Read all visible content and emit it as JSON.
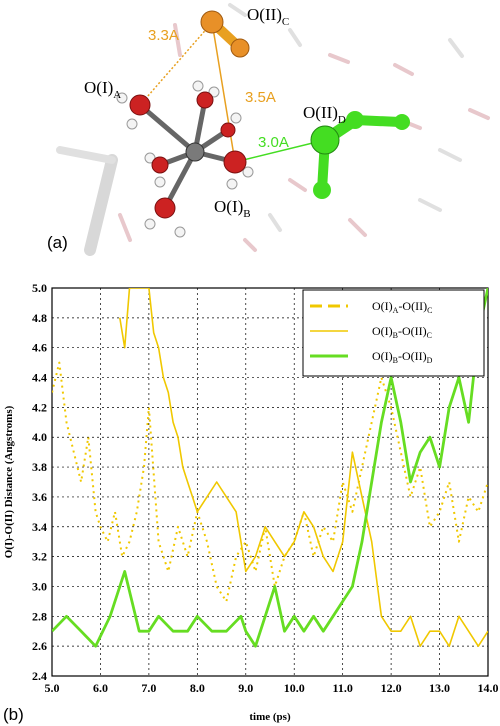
{
  "panel_a": {
    "label": "(a)",
    "atom_labels": {
      "o1a": {
        "main": "O(I)",
        "sub": "A"
      },
      "o1b": {
        "main": "O(I)",
        "sub": "B"
      },
      "o2c": {
        "main": "O(II)",
        "sub": "C"
      },
      "o2d": {
        "main": "O(II)",
        "sub": "D"
      }
    },
    "distances": [
      "3.3A",
      "3.5A",
      "3.0A"
    ],
    "colors": {
      "orange": "#e8a020",
      "green": "#44dd22",
      "red": "#cc2222",
      "metal": "#7a7a7a"
    }
  },
  "panel_b": {
    "label": "(b)"
  },
  "chart_data": {
    "type": "line",
    "xlabel": "time (ps)",
    "ylabel": "O(I)-O(II) Distance (Angstroms)",
    "xlim": [
      5.0,
      14.0
    ],
    "ylim": [
      2.4,
      5.0
    ],
    "xticks": [
      "5.0",
      "6.0",
      "7.0",
      "8.0",
      "9.0",
      "10.0",
      "11.0",
      "12.0",
      "13.0",
      "14.0"
    ],
    "yticks": [
      "2.4",
      "2.6",
      "2.8",
      "3.0",
      "3.2",
      "3.4",
      "3.6",
      "3.8",
      "4.0",
      "4.2",
      "4.4",
      "4.6",
      "4.8",
      "5.0"
    ],
    "grid": true,
    "legend_position": "top-right",
    "series": [
      {
        "name": "O(I)A-O(II)C",
        "name_main_1": "O(I)",
        "name_sub_1": "A",
        "name_main_2": "-O(II)",
        "name_sub_2": "C",
        "color": "#f0c800",
        "style": "dotted",
        "x": [
          5.0,
          5.15,
          5.3,
          5.45,
          5.6,
          5.75,
          5.9,
          6.0,
          6.15,
          6.3,
          6.45,
          6.6,
          6.75,
          6.9,
          7.0,
          7.2,
          7.4,
          7.6,
          7.8,
          8.0,
          8.2,
          8.4,
          8.6,
          8.8,
          9.0,
          9.2,
          9.4,
          9.6,
          9.8,
          10.0,
          10.2,
          10.4,
          10.6,
          10.8,
          11.0,
          11.2,
          11.4,
          11.6,
          11.8,
          12.0,
          12.2,
          12.4,
          12.6,
          12.8,
          13.0,
          13.2,
          13.4,
          13.6,
          13.8,
          14.0
        ],
        "y": [
          4.3,
          4.5,
          4.1,
          3.9,
          3.7,
          4.0,
          3.5,
          3.4,
          3.3,
          3.5,
          3.2,
          3.3,
          3.5,
          3.8,
          4.2,
          3.3,
          3.1,
          3.4,
          3.2,
          3.5,
          3.3,
          3.0,
          2.9,
          3.2,
          3.3,
          3.1,
          3.4,
          3.0,
          3.2,
          3.3,
          3.5,
          3.2,
          3.4,
          3.3,
          3.7,
          3.5,
          3.8,
          4.1,
          4.4,
          4.2,
          3.9,
          3.6,
          3.8,
          3.4,
          3.5,
          3.7,
          3.3,
          3.6,
          3.5,
          3.7
        ]
      },
      {
        "name": "O(I)B-O(II)C",
        "name_main_1": "O(I)",
        "name_sub_1": "B",
        "name_main_2": "-O(II)",
        "name_sub_2": "C",
        "color": "#f0c800",
        "style": "solid",
        "x": [
          6.4,
          6.5,
          6.6,
          7.0,
          7.1,
          7.2,
          7.3,
          7.4,
          7.5,
          7.6,
          7.7,
          7.8,
          7.9,
          8.0,
          8.2,
          8.4,
          8.6,
          8.8,
          9.0,
          9.2,
          9.4,
          9.6,
          9.8,
          10.0,
          10.2,
          10.4,
          10.6,
          10.8,
          11.0,
          11.2,
          11.4,
          11.6,
          11.8,
          12.0,
          12.2,
          12.4,
          12.6,
          12.8,
          13.0,
          13.2,
          13.4,
          13.6,
          13.8,
          14.0
        ],
        "y": [
          4.8,
          4.6,
          5.0,
          5.0,
          4.7,
          4.6,
          4.4,
          4.3,
          4.1,
          4.0,
          3.8,
          3.7,
          3.6,
          3.5,
          3.6,
          3.7,
          3.6,
          3.5,
          3.1,
          3.2,
          3.4,
          3.3,
          3.2,
          3.3,
          3.5,
          3.4,
          3.2,
          3.1,
          3.3,
          3.9,
          3.6,
          3.3,
          2.8,
          2.7,
          2.7,
          2.8,
          2.6,
          2.7,
          2.7,
          2.6,
          2.8,
          2.7,
          2.6,
          2.7
        ]
      },
      {
        "name": "O(I)B-O(II)D",
        "name_main_1": "O(I)",
        "name_sub_1": "B",
        "name_main_2": "-O(II)",
        "name_sub_2": "D",
        "color": "#66dd22",
        "style": "solid",
        "x": [
          5.0,
          5.3,
          5.6,
          5.9,
          6.2,
          6.5,
          6.8,
          7.0,
          7.2,
          7.5,
          7.8,
          8.0,
          8.3,
          8.6,
          8.9,
          9.0,
          9.2,
          9.4,
          9.6,
          9.8,
          10.0,
          10.2,
          10.4,
          10.6,
          10.8,
          11.0,
          11.2,
          11.4,
          11.6,
          11.8,
          12.0,
          12.2,
          12.4,
          12.6,
          12.8,
          13.0,
          13.2,
          13.4,
          13.6,
          13.8,
          14.0
        ],
        "y": [
          2.7,
          2.8,
          2.7,
          2.6,
          2.8,
          3.1,
          2.7,
          2.7,
          2.8,
          2.7,
          2.7,
          2.8,
          2.7,
          2.7,
          2.8,
          2.7,
          2.6,
          2.8,
          3.0,
          2.7,
          2.8,
          2.7,
          2.8,
          2.7,
          2.8,
          2.9,
          3.0,
          3.3,
          3.7,
          4.1,
          4.4,
          4.1,
          3.7,
          3.9,
          4.0,
          3.8,
          4.2,
          4.4,
          4.1,
          4.7,
          5.0
        ]
      }
    ]
  }
}
